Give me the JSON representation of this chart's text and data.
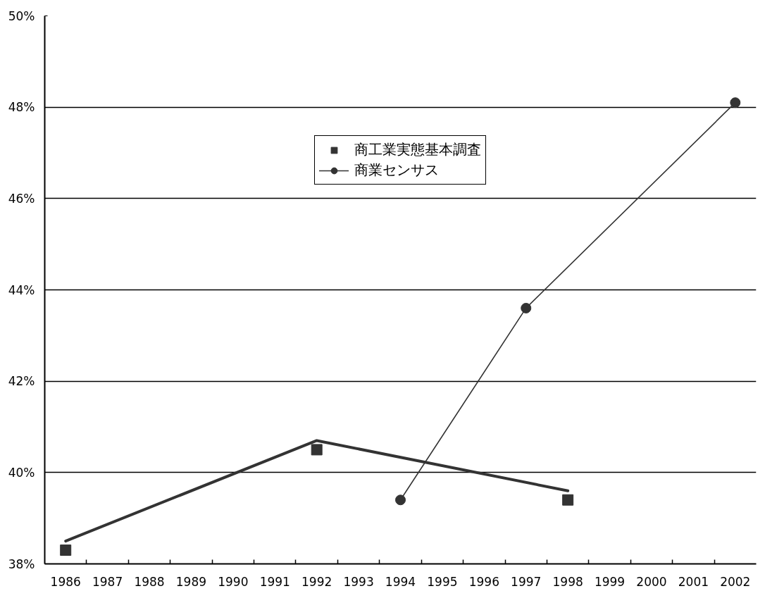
{
  "chart_data": {
    "type": "line",
    "xlim": [
      1985.5,
      2002.5
    ],
    "xticks": [
      1986,
      1987,
      1988,
      1989,
      1990,
      1991,
      1992,
      1993,
      1994,
      1995,
      1996,
      1997,
      1998,
      1999,
      2000,
      2001,
      2002
    ],
    "ylim": [
      38,
      50
    ],
    "yticks": [
      {
        "value": 38,
        "label": "38%"
      },
      {
        "value": 40,
        "label": "40%"
      },
      {
        "value": 42,
        "label": "42%"
      },
      {
        "value": 44,
        "label": "44%"
      },
      {
        "value": 46,
        "label": "46%"
      },
      {
        "value": 48,
        "label": "48%"
      },
      {
        "value": 50,
        "label": "50%"
      }
    ],
    "grid": "y",
    "legend": "top",
    "series": [
      {
        "name": "商工業実態基本調査",
        "type": "scatter",
        "marker": "square",
        "color": "#333333",
        "x": [
          1986,
          1992,
          1998
        ],
        "values": [
          38.3,
          40.5,
          39.4
        ]
      },
      {
        "marker": "none",
        "color": "#333333",
        "x": [
          1986,
          1992,
          1998
        ],
        "values": [
          38.5,
          40.7,
          39.6
        ]
      },
      {
        "name": "商業センサス",
        "marker": "circle",
        "color": "#333333",
        "x": [
          1994,
          1997,
          2002
        ],
        "values": [
          39.4,
          43.6,
          48.1
        ]
      }
    ]
  }
}
